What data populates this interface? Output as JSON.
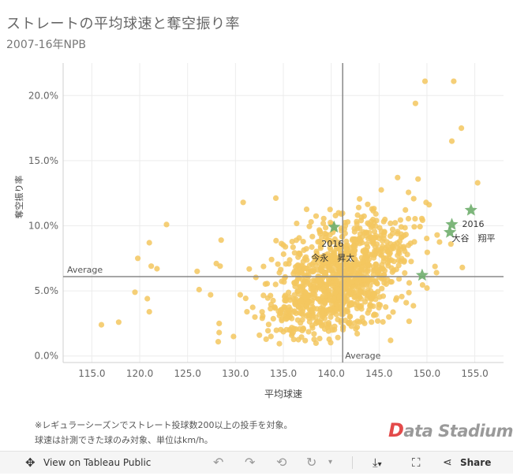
{
  "title": "ストレートの平均球速と奪空振り率",
  "subtitle": "2007-16年NPB",
  "footnote_line1": "※レギュラーシーズンでストレート投球数200以上の投手を対象。",
  "footnote_line2": "球速は計測できた球のみ対象、単位はkm/h。",
  "brand": {
    "initial": "D",
    "rest": "ata Stadium"
  },
  "toolbar": {
    "view_label": "View on Tableau Public",
    "share_label": "Share",
    "icons": [
      "move-icon",
      "undo-icon",
      "redo-icon",
      "revert-icon",
      "forward-icon",
      "dropdown-icon",
      "download-icon",
      "fullscreen-icon",
      "share-icon"
    ]
  },
  "colors": {
    "point": "#f3c75f",
    "highlight": "#6fae6d",
    "refline": "#888888",
    "grid": "#ececec"
  },
  "chart_data": {
    "type": "scatter",
    "xlabel": "平均球速",
    "ylabel": "奪空振り率",
    "xlim": [
      112,
      158
    ],
    "ylim": [
      -0.005,
      0.225
    ],
    "x_ticks": [
      "115.0",
      "120.0",
      "125.0",
      "130.0",
      "135.0",
      "140.0",
      "145.0",
      "150.0",
      "155.0"
    ],
    "y_ticks": [
      "0.0%",
      "5.0%",
      "10.0%",
      "15.0%",
      "20.0%"
    ],
    "grid": true,
    "reference_lines": [
      {
        "axis": "x",
        "value": 141.2,
        "label": "Average"
      },
      {
        "axis": "y",
        "value": 0.061,
        "label": "Average"
      }
    ],
    "outliers": [
      [
        116.0,
        0.024
      ],
      [
        117.8,
        0.026
      ],
      [
        119.5,
        0.049
      ],
      [
        119.8,
        0.075
      ],
      [
        120.8,
        0.044
      ],
      [
        121.0,
        0.034
      ],
      [
        121.0,
        0.087
      ],
      [
        121.2,
        0.069
      ],
      [
        121.8,
        0.067
      ],
      [
        122.8,
        0.101
      ],
      [
        126.0,
        0.065
      ],
      [
        126.2,
        0.051
      ],
      [
        127.4,
        0.047
      ],
      [
        128.0,
        0.071
      ],
      [
        128.2,
        0.011
      ],
      [
        128.3,
        0.018
      ],
      [
        128.3,
        0.025
      ],
      [
        128.4,
        0.069
      ],
      [
        128.5,
        0.089
      ],
      [
        129.8,
        0.015
      ],
      [
        130.5,
        0.047
      ],
      [
        131.2,
        0.034
      ],
      [
        132.5,
        0.016
      ],
      [
        132.8,
        0.029
      ],
      [
        130.8,
        0.118
      ],
      [
        149.8,
        0.211
      ],
      [
        152.8,
        0.211
      ],
      [
        148.8,
        0.194
      ],
      [
        152.6,
        0.165
      ],
      [
        155.3,
        0.133
      ],
      [
        153.6,
        0.175
      ],
      [
        152.5,
        0.086
      ],
      [
        153.7,
        0.068
      ],
      [
        151.0,
        0.064
      ],
      [
        146.2,
        0.012
      ]
    ],
    "cloud": {
      "center_x": 141.0,
      "center_y": 0.06,
      "sd_x": 3.6,
      "sd_y": 0.026,
      "correlation": 0.45,
      "count": 1100,
      "x_range": [
        131,
        155
      ],
      "y_range": [
        0.008,
        0.185
      ]
    },
    "highlights": [
      {
        "name": "大谷　翔平",
        "year": "2016",
        "points": [
          [
            154.6,
            0.112
          ],
          [
            152.6,
            0.101
          ],
          [
            152.4,
            0.095
          ],
          [
            149.5,
            0.062
          ]
        ]
      },
      {
        "name": "今永　昇太",
        "year": "2016",
        "points": [
          [
            140.3,
            0.099
          ]
        ]
      }
    ]
  }
}
